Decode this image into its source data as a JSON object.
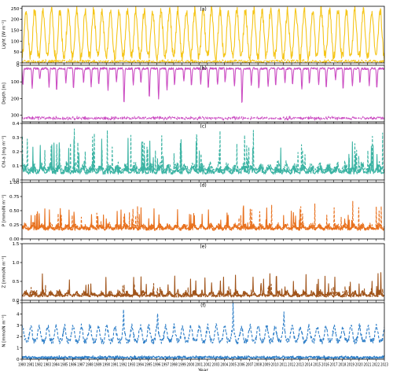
{
  "chart_data": [
    {
      "type": "line",
      "panel_label": "(a)",
      "title": "",
      "xlabel": "",
      "ylabel": "Light [W m⁻²]",
      "xlim": [
        1980,
        2023
      ],
      "ylim": [
        0,
        260
      ],
      "yticks": [
        0,
        50,
        100,
        150,
        200,
        250
      ],
      "grid": false,
      "series": [
        {
          "style": "solid",
          "color": "#f5c518",
          "model": {
            "kind": "seasonal",
            "base": 30,
            "amp": 210,
            "phase": 0.5,
            "sharp": 1.2,
            "noise": 22,
            "seed": 1
          }
        },
        {
          "style": "dashed",
          "color": "#f5c518",
          "model": {
            "kind": "flat_noise",
            "base": 7,
            "noise": 6,
            "seed": 2
          }
        }
      ]
    },
    {
      "type": "line",
      "panel_label": "(b)",
      "title": "",
      "xlabel": "",
      "ylabel": "Depth [m]",
      "xlim": [
        1980,
        2023
      ],
      "ylim": [
        340,
        0
      ],
      "y_inverted": true,
      "yticks": [
        0,
        100,
        200,
        300
      ],
      "grid": false,
      "series": [
        {
          "style": "solid",
          "color": "#cc4fc3",
          "model": {
            "kind": "depth",
            "base": 20,
            "seed": 3,
            "dip_years": [
              1980.1,
              1981.2,
              1982.1,
              1983.2,
              1984.1,
              1985.2,
              1986.1,
              1987.3,
              1988.2,
              1989.1,
              1990.2,
              1991.2,
              1992.1,
              1993.2,
              1994.1,
              1995.1,
              1996.2,
              1997.2,
              1998.1,
              1999.2,
              2000.1,
              2001.2,
              2002.1,
              2003.2,
              2004.1,
              2005.2,
              2006.1,
              2007.2,
              2008.1,
              2009.2,
              2010.1,
              2011.2,
              2012.1,
              2013.2,
              2014.1,
              2015.2,
              2016.1,
              2017.2,
              2018.1,
              2019.2,
              2020.1,
              2021.2,
              2022.1
            ],
            "dip_depths": [
              120,
              140,
              90,
              130,
              150,
              110,
              140,
              100,
              130,
              120,
              150,
              100,
              235,
              120,
              110,
              200,
              200,
              150,
              120,
              90,
              130,
              110,
              140,
              120,
              100,
              130,
              235,
              120,
              140,
              130,
              120,
              100,
              120,
              150,
              110,
              120,
              140,
              90,
              150,
              130,
              110,
              120,
              140
            ]
          }
        },
        {
          "style": "dashed",
          "color": "#cc4fc3",
          "model": {
            "kind": "flat_noise",
            "base": 318,
            "noise": 8,
            "seed": 4
          }
        }
      ]
    },
    {
      "type": "line",
      "panel_label": "(c)",
      "title": "",
      "xlabel": "",
      "ylabel": "Chl-a [mg m⁻³]",
      "xlim": [
        1980,
        2023
      ],
      "ylim": [
        0,
        0.4
      ],
      "yticks": [
        0.0,
        0.1,
        0.2,
        0.3,
        0.4
      ],
      "grid": false,
      "series": [
        {
          "style": "solid",
          "color": "#3bb3a3",
          "model": {
            "kind": "spiky",
            "base": 0.05,
            "amp": 0.06,
            "spike": 0.16,
            "phase": 0.3,
            "noise": 0.02,
            "seed": 5
          }
        },
        {
          "style": "dashed",
          "color": "#3bb3a3",
          "model": {
            "kind": "spiky",
            "base": 0.07,
            "amp": 0.06,
            "spike": 0.18,
            "phase": 0.35,
            "noise": 0.02,
            "seed": 6
          }
        }
      ]
    },
    {
      "type": "line",
      "panel_label": "(d)",
      "title": "",
      "xlabel": "",
      "ylabel": "P [mmolN m⁻³]",
      "xlim": [
        1980,
        2023
      ],
      "ylim": [
        0,
        1.0
      ],
      "yticks": [
        0.0,
        0.25,
        0.5,
        0.75,
        1.0
      ],
      "grid": false,
      "series": [
        {
          "style": "solid",
          "color": "#e8711e",
          "model": {
            "kind": "spiky",
            "base": 0.17,
            "amp": 0.1,
            "spike": 0.25,
            "phase": 0.3,
            "noise": 0.04,
            "seed": 7
          }
        },
        {
          "style": "dashed",
          "color": "#e8711e",
          "model": {
            "kind": "spiky",
            "base": 0.19,
            "amp": 0.1,
            "spike": 0.3,
            "phase": 0.35,
            "noise": 0.04,
            "seed": 8
          }
        }
      ]
    },
    {
      "type": "line",
      "panel_label": "(e)",
      "title": "",
      "xlabel": "",
      "ylabel": "Z [mmolN m⁻³]",
      "xlim": [
        1980,
        2023
      ],
      "ylim": [
        0,
        1.5
      ],
      "yticks": [
        0.0,
        0.5,
        1.0,
        1.5
      ],
      "grid": false,
      "series": [
        {
          "style": "solid",
          "color": "#a0541a",
          "model": {
            "kind": "spiky",
            "base": 0.12,
            "amp": 0.15,
            "spike": 0.35,
            "phase": 0.45,
            "noise": 0.05,
            "seed": 9
          }
        },
        {
          "style": "dashed",
          "color": "#a0541a",
          "model": {
            "kind": "spiky",
            "base": 0.1,
            "amp": 0.1,
            "spike": 0.2,
            "phase": 0.5,
            "noise": 0.04,
            "seed": 10
          }
        }
      ]
    },
    {
      "type": "line",
      "panel_label": "(f)",
      "title": "",
      "xlabel": "Year",
      "ylabel": "N [mmolN m⁻³]",
      "xlim": [
        1980,
        2023
      ],
      "ylim": [
        0,
        5
      ],
      "yticks": [
        0,
        1,
        2,
        3,
        4,
        5
      ],
      "xticks": [
        1980,
        1981,
        1982,
        1983,
        1984,
        1985,
        1986,
        1987,
        1988,
        1989,
        1990,
        1991,
        1992,
        1993,
        1994,
        1995,
        1996,
        1997,
        1998,
        1999,
        2000,
        2001,
        2002,
        2003,
        2004,
        2005,
        2006,
        2007,
        2008,
        2009,
        2010,
        2011,
        2012,
        2013,
        2014,
        2015,
        2016,
        2017,
        2018,
        2019,
        2020,
        2021,
        2022,
        2023
      ],
      "grid": false,
      "series": [
        {
          "style": "dashed",
          "color": "#2f7fc8",
          "model": {
            "kind": "seasonal_peaks",
            "base": 1.6,
            "amp": 1.3,
            "phase": 0.05,
            "noise": 0.25,
            "seed": 11,
            "peak_years": [
              1992.05,
              1996.1,
              2005.05,
              2011.1
            ],
            "peak_vals": [
              4.5,
              4.3,
              4.9,
              4.2
            ]
          }
        },
        {
          "style": "solid",
          "color": "#2f7fc8",
          "model": {
            "kind": "flat_noise",
            "base": 0.15,
            "noise": 0.12,
            "seed": 12
          }
        }
      ]
    }
  ]
}
